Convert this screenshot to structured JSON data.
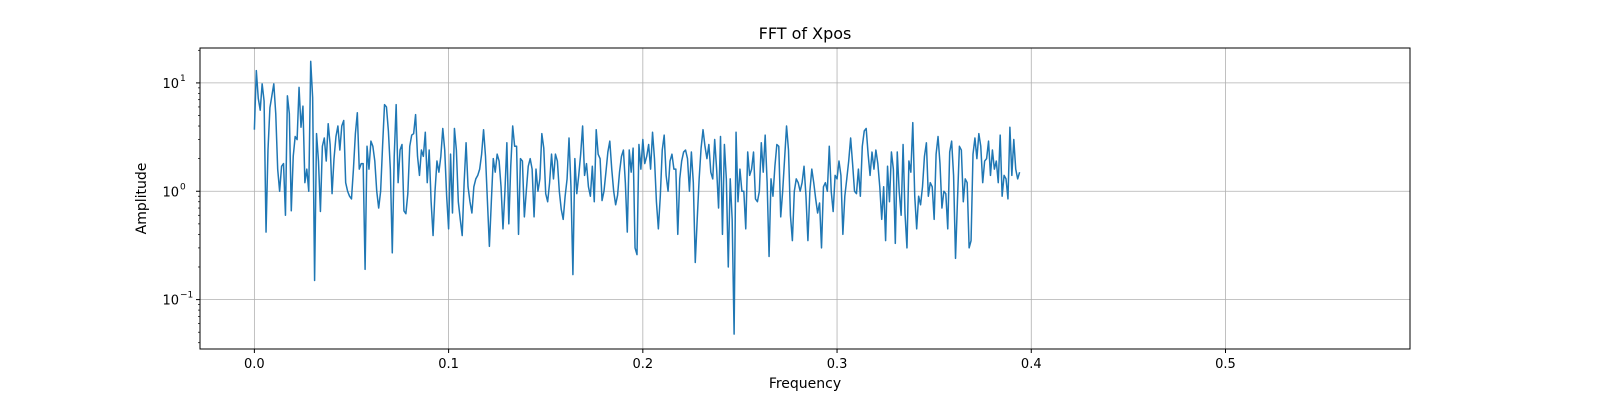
{
  "chart_data": {
    "type": "line",
    "title": "FFT of Xpos",
    "xlabel": "Frequency",
    "ylabel": "Amplitude",
    "xlim": [
      -0.028,
      0.595
    ],
    "ylim": [
      0.035,
      21
    ],
    "y_scale": "log",
    "grid": true,
    "legend": "none",
    "x_ticks": [
      0.0,
      0.1,
      0.2,
      0.3,
      0.4,
      0.5
    ],
    "x_tick_labels": [
      "0.0",
      "0.1",
      "0.2",
      "0.3",
      "0.4",
      "0.5"
    ],
    "y_ticks": [
      {
        "value": 0.1,
        "base": "10",
        "exp": "−1"
      },
      {
        "value": 1,
        "base": "10",
        "exp": "0"
      },
      {
        "value": 10,
        "base": "10",
        "exp": "1"
      }
    ],
    "colors": {
      "line": "#1f77b4",
      "grid": "#b0b0b0",
      "axes": "#000000"
    },
    "series": [
      {
        "x_start": 0.0,
        "x_step": 0.001,
        "values": [
          3.7,
          13.0,
          7.2,
          5.6,
          9.8,
          6.8,
          0.42,
          2.4,
          5.9,
          7.6,
          9.8,
          5.2,
          1.6,
          1.0,
          1.7,
          1.8,
          0.6,
          7.6,
          5.2,
          0.66,
          2.1,
          3.2,
          3.0,
          9.1,
          3.9,
          6.1,
          1.2,
          1.6,
          1.0,
          15.8,
          7.3,
          0.15,
          3.4,
          1.9,
          0.65,
          2.6,
          3.1,
          1.9,
          4.2,
          2.7,
          0.95,
          2.0,
          3.2,
          4.0,
          2.4,
          4.0,
          4.5,
          1.2,
          1.0,
          0.9,
          0.85,
          1.6,
          3.4,
          5.3,
          1.6,
          1.8,
          1.8,
          0.19,
          2.6,
          1.6,
          2.9,
          2.6,
          1.9,
          1.0,
          0.7,
          1.0,
          2.6,
          6.3,
          6.0,
          3.6,
          1.6,
          0.27,
          2.1,
          6.3,
          1.2,
          2.4,
          2.7,
          0.66,
          0.62,
          0.95,
          2.6,
          3.3,
          3.4,
          5.1,
          2.1,
          1.4,
          2.4,
          2.1,
          3.5,
          1.2,
          2.4,
          0.8,
          0.39,
          1.0,
          1.9,
          1.5,
          2.1,
          3.8,
          2.4,
          0.9,
          0.45,
          2.2,
          0.63,
          3.8,
          2.4,
          0.8,
          0.55,
          0.39,
          1.2,
          2.8,
          1.1,
          0.8,
          0.63,
          1.1,
          1.3,
          1.4,
          1.6,
          2.2,
          3.7,
          2.1,
          0.8,
          0.31,
          0.8,
          2.0,
          1.5,
          2.2,
          1.9,
          1.1,
          0.45,
          1.0,
          2.8,
          0.5,
          1.7,
          4.0,
          2.6,
          2.6,
          0.4,
          2.0,
          1.9,
          0.58,
          1.0,
          1.7,
          2.0,
          1.6,
          0.58,
          1.6,
          1.0,
          1.3,
          3.4,
          2.5,
          0.95,
          0.8,
          1.2,
          2.2,
          1.3,
          2.2,
          1.9,
          1.0,
          0.68,
          0.55,
          0.9,
          1.3,
          3.1,
          1.1,
          0.17,
          2.0,
          0.95,
          1.4,
          2.2,
          4.0,
          1.4,
          1.8,
          1.1,
          0.9,
          1.7,
          0.8,
          3.7,
          2.2,
          2.0,
          0.82,
          1.0,
          1.5,
          2.3,
          2.9,
          1.6,
          1.0,
          0.75,
          0.92,
          1.5,
          2.1,
          2.4,
          1.2,
          0.42,
          2.4,
          1.5,
          2.5,
          0.3,
          0.26,
          2.7,
          1.6,
          3.0,
          1.8,
          2.1,
          2.7,
          1.6,
          3.5,
          2.0,
          0.8,
          0.45,
          0.9,
          2.4,
          3.3,
          1.4,
          1.0,
          1.9,
          2.2,
          1.6,
          1.6,
          0.4,
          1.3,
          1.9,
          2.3,
          2.4,
          2.0,
          1.0,
          2.3,
          1.2,
          0.22,
          0.55,
          1.3,
          2.5,
          3.7,
          2.6,
          2.0,
          2.7,
          1.5,
          1.3,
          3.0,
          1.6,
          0.7,
          3.2,
          0.4,
          2.7,
          1.3,
          0.2,
          1.3,
          0.55,
          0.048,
          3.5,
          0.8,
          1.6,
          1.0,
          1.0,
          0.45,
          2.3,
          1.4,
          1.6,
          2.3,
          0.85,
          0.8,
          1.0,
          2.8,
          1.5,
          3.3,
          1.2,
          0.25,
          1.3,
          0.9,
          1.7,
          2.7,
          2.6,
          0.58,
          1.0,
          2.0,
          4.0,
          2.4,
          0.6,
          0.35,
          1.0,
          1.3,
          1.2,
          1.0,
          1.2,
          1.7,
          0.9,
          0.35,
          1.0,
          1.6,
          1.2,
          0.85,
          0.63,
          0.78,
          0.3,
          1.1,
          1.2,
          1.0,
          2.6,
          1.0,
          0.65,
          1.4,
          1.3,
          1.9,
          1.4,
          0.4,
          0.9,
          1.3,
          1.9,
          3.1,
          1.8,
          1.0,
          0.95,
          1.6,
          0.9,
          2.6,
          3.6,
          3.8,
          2.2,
          1.4,
          2.3,
          1.6,
          2.4,
          1.8,
          1.1,
          0.55,
          1.1,
          0.35,
          1.7,
          0.8,
          2.3,
          1.6,
          0.33,
          2.3,
          1.0,
          0.6,
          2.7,
          0.62,
          0.3,
          1.9,
          1.5,
          4.3,
          0.9,
          0.45,
          0.9,
          0.75,
          1.1,
          2.1,
          2.8,
          0.9,
          1.2,
          1.1,
          0.55,
          2.2,
          3.2,
          1.8,
          0.7,
          1.0,
          0.95,
          0.45,
          2.3,
          2.9,
          1.4,
          0.24,
          0.82,
          2.6,
          2.4,
          0.8,
          1.3,
          1.2,
          0.3,
          0.35,
          2.2,
          3.1,
          2.0,
          3.4,
          2.6,
          1.2,
          1.9,
          2.0,
          2.9,
          1.4,
          2.4,
          1.6,
          1.9,
          1.2,
          3.3,
          0.9,
          1.4,
          1.3,
          0.85,
          3.9,
          1.4,
          3.0,
          1.6,
          1.3,
          1.5
        ]
      }
    ]
  }
}
